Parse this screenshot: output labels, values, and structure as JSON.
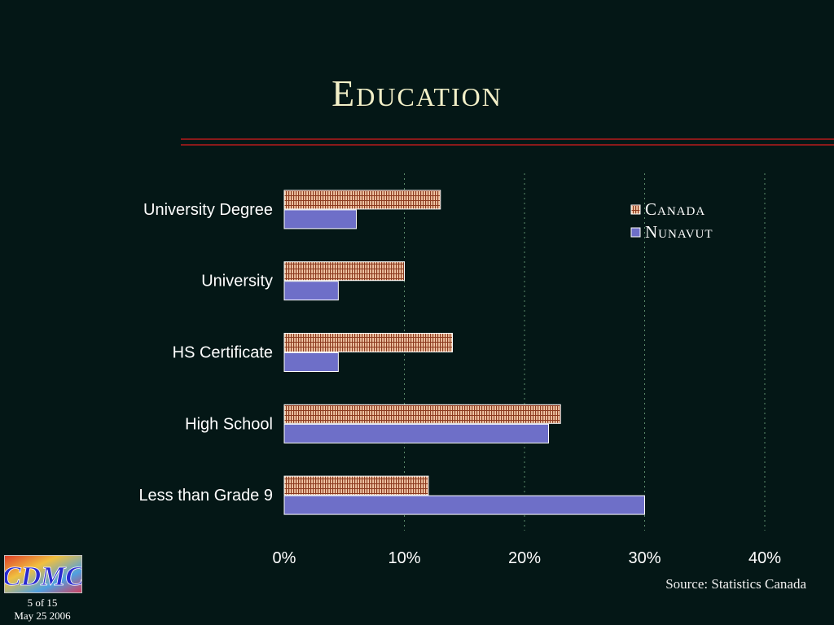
{
  "slide": {
    "title": "Education",
    "source": "Source: Statistics Canada",
    "slide_number": "5 of 15",
    "date": "May 25 2006"
  },
  "logo": {
    "text": "CDMC"
  },
  "colors": {
    "background": "#041716",
    "canada_fill": "#f2c9a8",
    "canada_hatch": "#8c3a1f",
    "nunavut": "#6e6fc8",
    "gridline": "#5c8c6c",
    "rule": "#8a1a1a"
  },
  "chart_data": {
    "type": "bar",
    "orientation": "horizontal",
    "categories": [
      "University Degree",
      "University",
      "HS Certificate",
      "High School",
      "Less than Grade 9"
    ],
    "series": [
      {
        "name": "Canada",
        "values": [
          13,
          10,
          14,
          23,
          12
        ]
      },
      {
        "name": "Nunavut",
        "values": [
          6,
          4.5,
          4.5,
          22,
          30
        ]
      }
    ],
    "xlim": [
      0,
      40
    ],
    "xticks": [
      "0%",
      "10%",
      "20%",
      "30%",
      "40%"
    ],
    "grid": true,
    "legend": "top-right"
  }
}
